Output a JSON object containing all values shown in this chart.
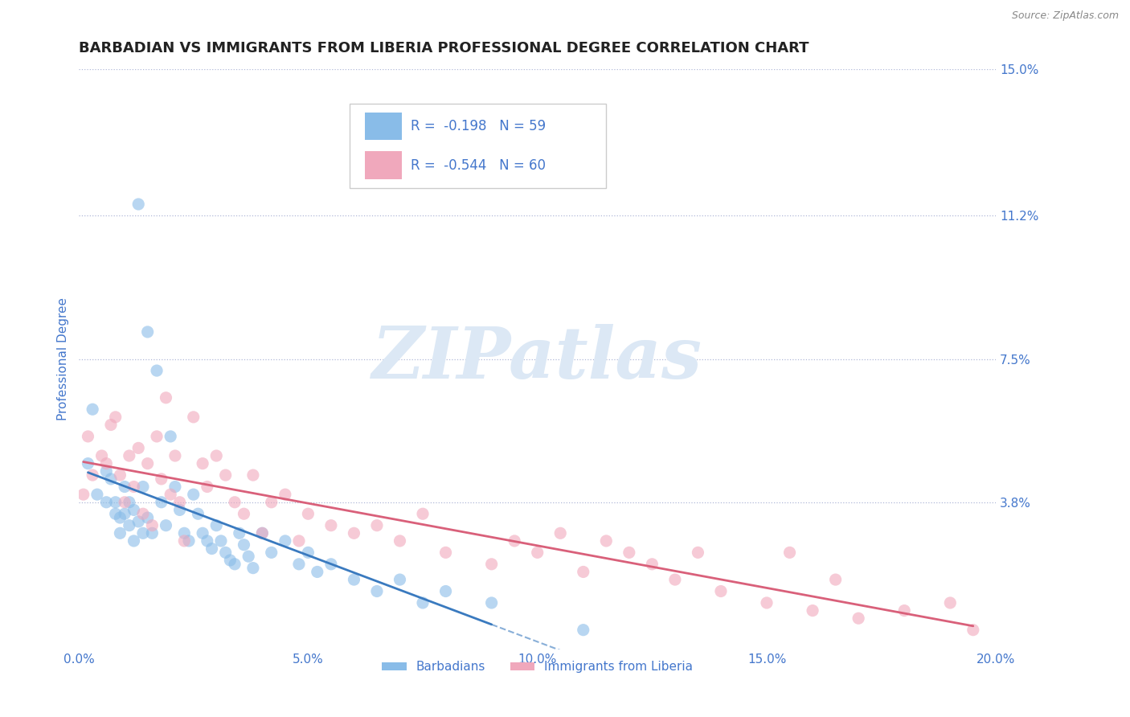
{
  "title": "BARBADIAN VS IMMIGRANTS FROM LIBERIA PROFESSIONAL DEGREE CORRELATION CHART",
  "source_text": "Source: ZipAtlas.com",
  "ylabel": "Professional Degree",
  "xlim": [
    0.0,
    0.2
  ],
  "ylim": [
    0.0,
    0.15
  ],
  "xtick_labels": [
    "0.0%",
    "5.0%",
    "10.0%",
    "15.0%",
    "20.0%"
  ],
  "xtick_values": [
    0.0,
    0.05,
    0.1,
    0.15,
    0.2
  ],
  "ytick_labels_right": [
    "3.8%",
    "7.5%",
    "11.2%",
    "15.0%"
  ],
  "ytick_values_right": [
    0.038,
    0.075,
    0.112,
    0.15
  ],
  "gridline_color": "#b0b8d8",
  "background_color": "#ffffff",
  "watermark_text": "ZIPatlas",
  "watermark_color": "#dce8f5",
  "legend_R1": "-0.198",
  "legend_N1": "59",
  "legend_R2": "-0.544",
  "legend_N2": "60",
  "legend_label1": "Barbadians",
  "legend_label2": "Immigrants from Liberia",
  "scatter1_color": "#89bce8",
  "scatter2_color": "#f0a8bc",
  "line1_color": "#3a7abf",
  "line2_color": "#d9607a",
  "title_color": "#222222",
  "title_fontsize": 13,
  "tick_label_color": "#4477cc",
  "scatter1_x": [
    0.002,
    0.003,
    0.004,
    0.006,
    0.006,
    0.007,
    0.008,
    0.008,
    0.009,
    0.009,
    0.01,
    0.01,
    0.011,
    0.011,
    0.012,
    0.012,
    0.013,
    0.013,
    0.014,
    0.014,
    0.015,
    0.015,
    0.016,
    0.017,
    0.018,
    0.019,
    0.02,
    0.021,
    0.022,
    0.023,
    0.024,
    0.025,
    0.026,
    0.027,
    0.028,
    0.029,
    0.03,
    0.031,
    0.032,
    0.033,
    0.034,
    0.035,
    0.036,
    0.037,
    0.038,
    0.04,
    0.042,
    0.045,
    0.048,
    0.05,
    0.052,
    0.055,
    0.06,
    0.065,
    0.07,
    0.075,
    0.08,
    0.09,
    0.11
  ],
  "scatter1_y": [
    0.048,
    0.062,
    0.04,
    0.046,
    0.038,
    0.044,
    0.038,
    0.035,
    0.034,
    0.03,
    0.042,
    0.035,
    0.038,
    0.032,
    0.036,
    0.028,
    0.033,
    0.115,
    0.042,
    0.03,
    0.034,
    0.082,
    0.03,
    0.072,
    0.038,
    0.032,
    0.055,
    0.042,
    0.036,
    0.03,
    0.028,
    0.04,
    0.035,
    0.03,
    0.028,
    0.026,
    0.032,
    0.028,
    0.025,
    0.023,
    0.022,
    0.03,
    0.027,
    0.024,
    0.021,
    0.03,
    0.025,
    0.028,
    0.022,
    0.025,
    0.02,
    0.022,
    0.018,
    0.015,
    0.018,
    0.012,
    0.015,
    0.012,
    0.005
  ],
  "scatter2_x": [
    0.001,
    0.002,
    0.003,
    0.005,
    0.006,
    0.007,
    0.008,
    0.009,
    0.01,
    0.011,
    0.012,
    0.013,
    0.014,
    0.015,
    0.016,
    0.017,
    0.018,
    0.019,
    0.02,
    0.021,
    0.022,
    0.023,
    0.025,
    0.027,
    0.028,
    0.03,
    0.032,
    0.034,
    0.036,
    0.038,
    0.04,
    0.042,
    0.045,
    0.048,
    0.05,
    0.055,
    0.06,
    0.065,
    0.07,
    0.075,
    0.08,
    0.09,
    0.095,
    0.1,
    0.105,
    0.11,
    0.115,
    0.12,
    0.125,
    0.13,
    0.135,
    0.14,
    0.15,
    0.155,
    0.16,
    0.165,
    0.17,
    0.18,
    0.19,
    0.195
  ],
  "scatter2_y": [
    0.04,
    0.055,
    0.045,
    0.05,
    0.048,
    0.058,
    0.06,
    0.045,
    0.038,
    0.05,
    0.042,
    0.052,
    0.035,
    0.048,
    0.032,
    0.055,
    0.044,
    0.065,
    0.04,
    0.05,
    0.038,
    0.028,
    0.06,
    0.048,
    0.042,
    0.05,
    0.045,
    0.038,
    0.035,
    0.045,
    0.03,
    0.038,
    0.04,
    0.028,
    0.035,
    0.032,
    0.03,
    0.032,
    0.028,
    0.035,
    0.025,
    0.022,
    0.028,
    0.025,
    0.03,
    0.02,
    0.028,
    0.025,
    0.022,
    0.018,
    0.025,
    0.015,
    0.012,
    0.025,
    0.01,
    0.018,
    0.008,
    0.01,
    0.012,
    0.005
  ]
}
